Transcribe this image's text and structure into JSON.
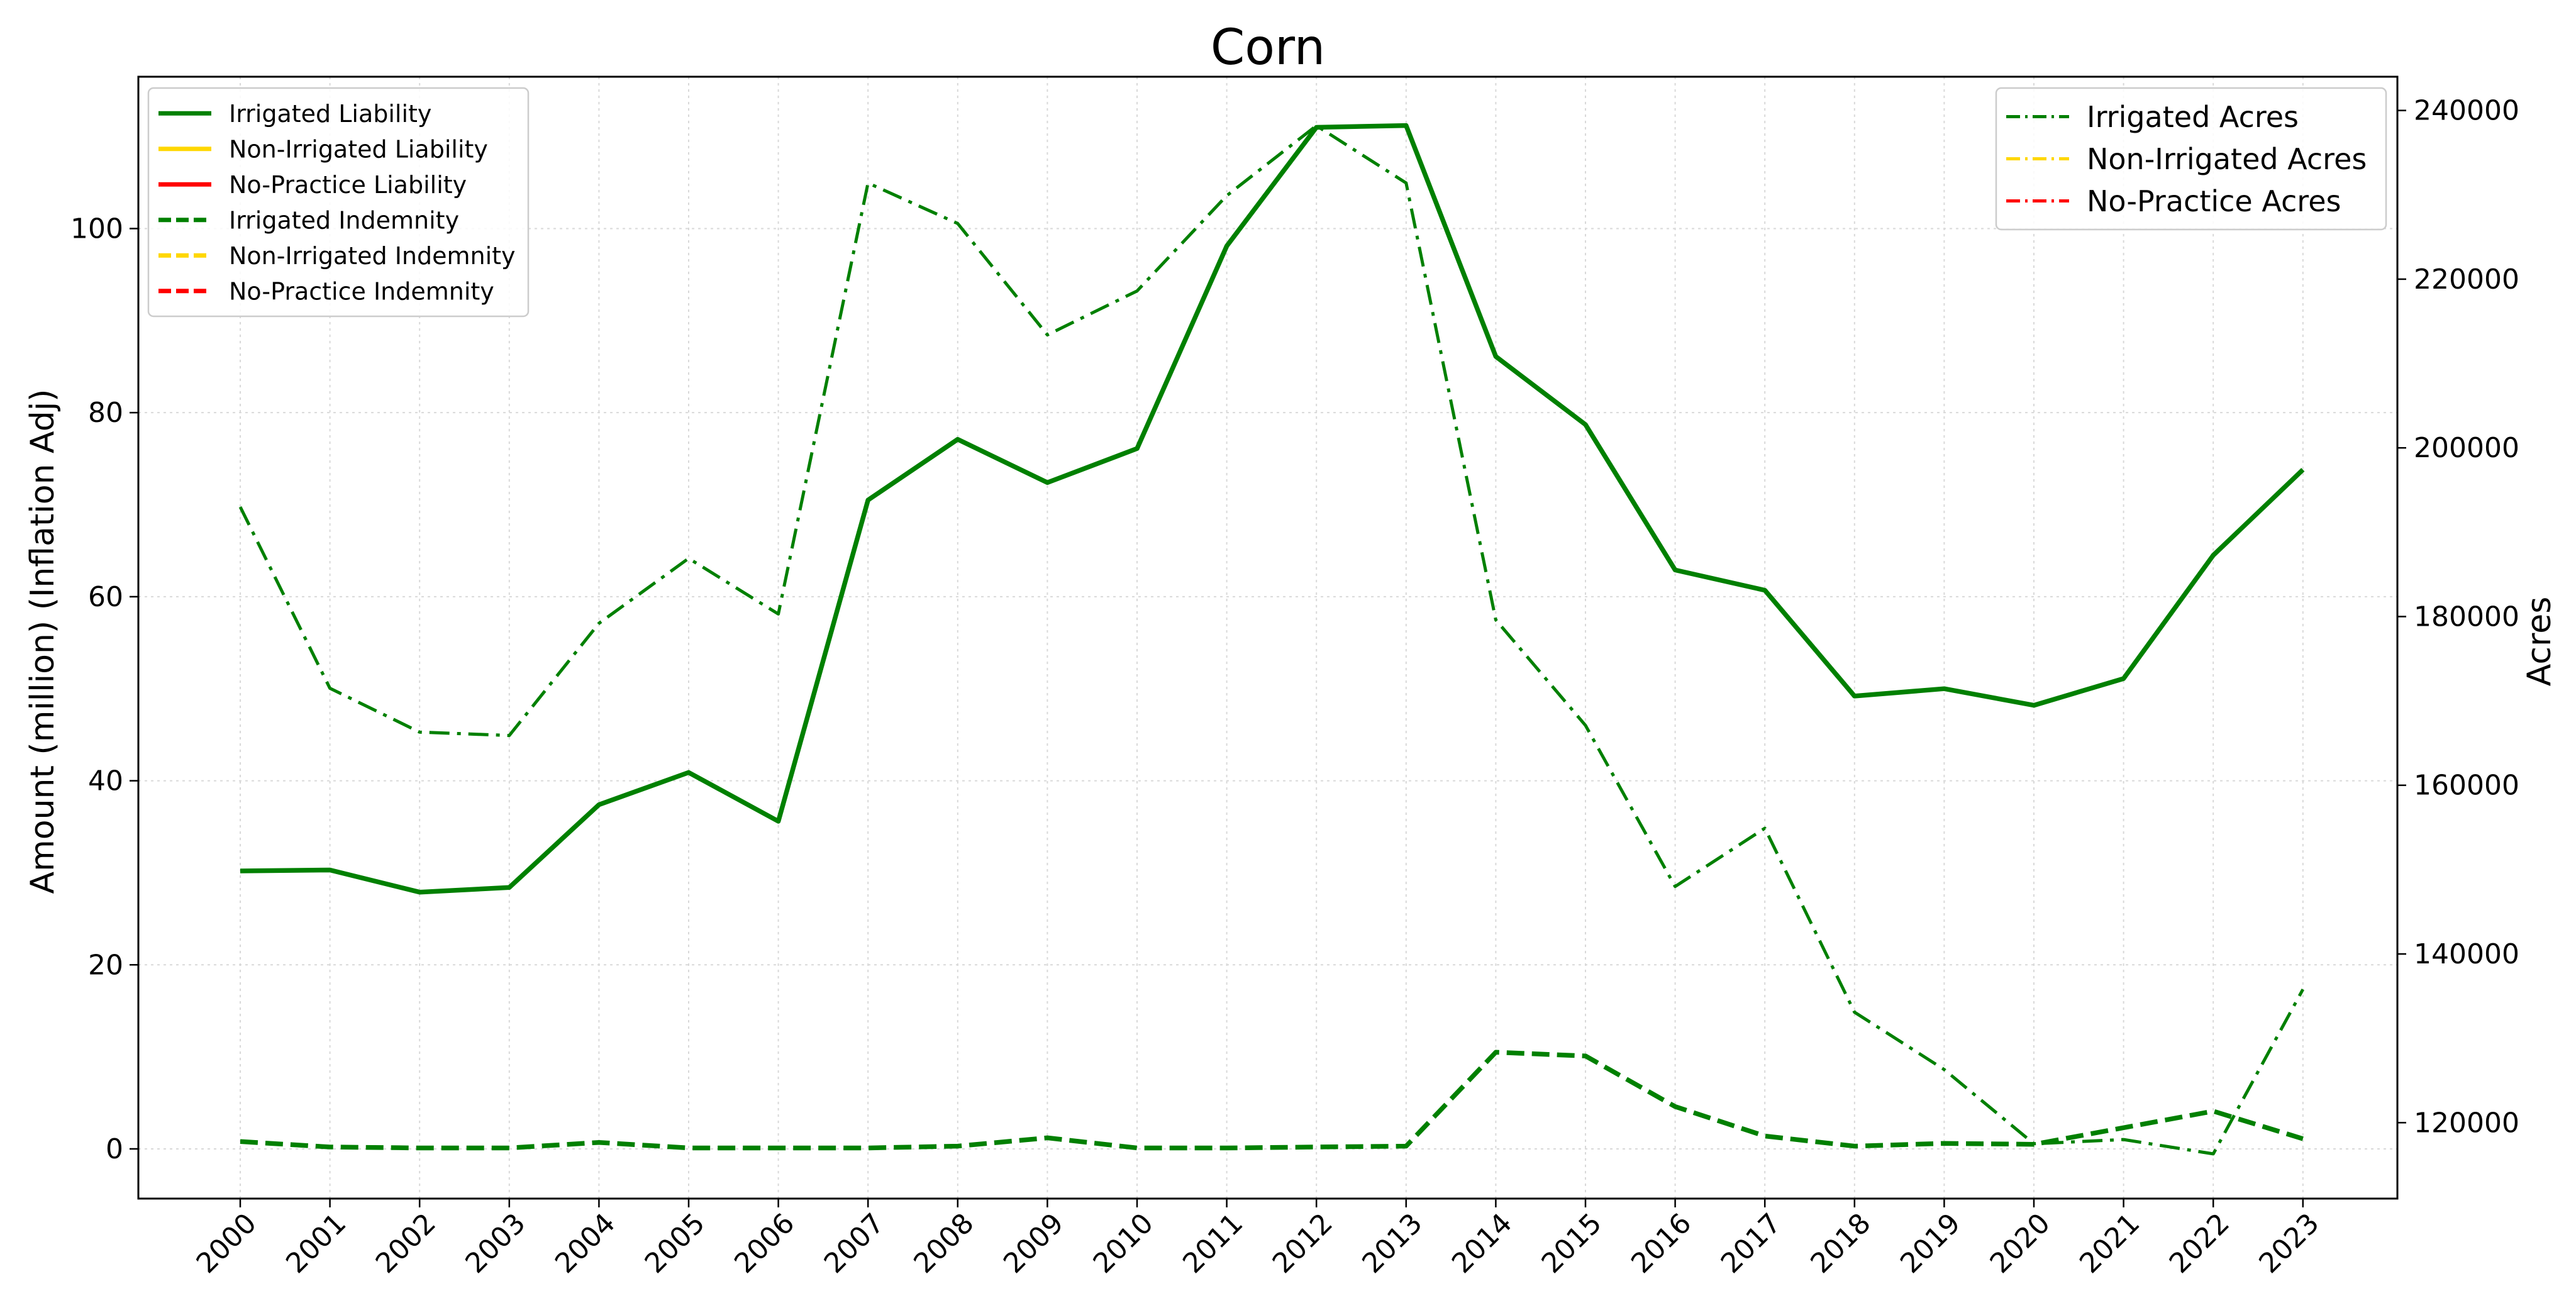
{
  "chart_data": {
    "type": "line",
    "title": "Corn",
    "ylabel": "Amount (million) (Inflation Adj)",
    "ylabel_right": "Acres",
    "xlabel": "",
    "grid": true,
    "ylim": [
      -5.4,
      116.5
    ],
    "ylim_right": [
      111000,
      244000
    ],
    "yticks": [
      "0",
      "20",
      "40",
      "60",
      "80",
      "100"
    ],
    "yticks_right": [
      "120000",
      "140000",
      "160000",
      "180000",
      "200000",
      "220000",
      "240000"
    ],
    "x": [
      "2000",
      "2001",
      "2002",
      "2003",
      "2004",
      "2005",
      "2006",
      "2007",
      "2008",
      "2009",
      "2010",
      "2011",
      "2012",
      "2013",
      "2014",
      "2015",
      "2016",
      "2017",
      "2018",
      "2019",
      "2020",
      "2021",
      "2022",
      "2023"
    ],
    "colors": {
      "irrigated": "#008000",
      "non_irrigated": "#FFD700",
      "no_practice": "#FF0000"
    },
    "legend_left_position": "top-left",
    "legend_right_position": "top-right",
    "series_left": [
      {
        "name": "Irrigated Liability",
        "style": "solid",
        "color_key": "irrigated",
        "values": [
          30.2,
          30.3,
          27.9,
          28.4,
          37.4,
          40.9,
          35.6,
          70.5,
          77.1,
          72.4,
          76.1,
          98.1,
          111.0,
          111.2,
          86.1,
          78.7,
          62.9,
          60.7,
          49.2,
          50.0,
          48.2,
          51.1,
          64.5,
          73.8
        ]
      },
      {
        "name": "Non-Irrigated Liability",
        "style": "solid",
        "color_key": "non_irrigated",
        "values": []
      },
      {
        "name": "No-Practice Liability",
        "style": "solid",
        "color_key": "no_practice",
        "values": []
      },
      {
        "name": "Irrigated Indemnity",
        "style": "dashed",
        "color_key": "irrigated",
        "values": [
          0.8,
          0.2,
          0.1,
          0.1,
          0.7,
          0.1,
          0.1,
          0.1,
          0.3,
          1.2,
          0.1,
          0.1,
          0.2,
          0.3,
          10.5,
          10.1,
          4.6,
          1.4,
          0.3,
          0.6,
          0.5,
          2.3,
          4.1,
          1.1
        ]
      },
      {
        "name": "Non-Irrigated Indemnity",
        "style": "dashed",
        "color_key": "non_irrigated",
        "values": []
      },
      {
        "name": "No-Practice Indemnity",
        "style": "dashed",
        "color_key": "no_practice",
        "values": []
      }
    ],
    "series_right": [
      {
        "name": "Irrigated Acres",
        "style": "dashdot",
        "color_key": "irrigated",
        "values": [
          193000,
          171500,
          166300,
          165900,
          179200,
          186900,
          180300,
          231400,
          226600,
          213400,
          218600,
          229900,
          238200,
          231400,
          179600,
          167100,
          148000,
          154900,
          133100,
          126300,
          117500,
          118000,
          116300,
          135800
        ]
      },
      {
        "name": "Non-Irrigated Acres",
        "style": "dashdot",
        "color_key": "non_irrigated",
        "values": []
      },
      {
        "name": "No-Practice Acres",
        "style": "dashdot",
        "color_key": "no_practice",
        "values": []
      }
    ]
  }
}
